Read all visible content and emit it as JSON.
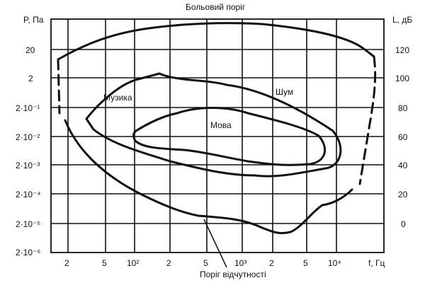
{
  "left_axis": {
    "title": "P, Па",
    "ticks": [
      "20",
      "2",
      "2·10⁻¹",
      "2·10⁻²",
      "2·10⁻³",
      "2·10⁻⁴",
      "2·10⁻⁵",
      "2·10⁻⁶"
    ]
  },
  "right_axis": {
    "title": "L, дБ",
    "ticks": [
      "120",
      "100",
      "80",
      "60",
      "40",
      "20",
      "0"
    ]
  },
  "bottom_axis": {
    "title": "f, Гц",
    "ticks": [
      "2",
      "5",
      "10²",
      "2",
      "5",
      "10³",
      "2",
      "5",
      "10⁴"
    ]
  },
  "annotations": {
    "pain_threshold": "Больовий поріг",
    "hearing_threshold": "Поріг відчутності",
    "music": "Музика",
    "speech": "Мова",
    "noise": "Шум"
  }
}
